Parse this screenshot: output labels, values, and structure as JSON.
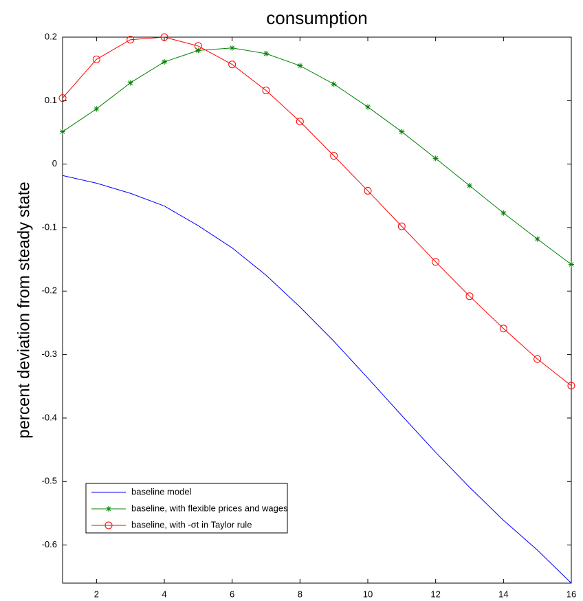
{
  "chart_data": {
    "type": "line",
    "title": "consumption",
    "y_label": "percent deviation from steady state",
    "x": [
      1,
      2,
      3,
      4,
      5,
      6,
      7,
      8,
      9,
      10,
      11,
      12,
      13,
      14,
      15,
      16
    ],
    "xlim": [
      1,
      16
    ],
    "xticks": [
      2,
      4,
      6,
      8,
      10,
      12,
      14,
      16
    ],
    "ylim": [
      -0.66,
      0.2
    ],
    "yticks": [
      0.2,
      0.1,
      0,
      -0.1,
      -0.2,
      -0.3,
      -0.4,
      -0.5,
      -0.6
    ],
    "legend": "lower left",
    "grid": false,
    "series": [
      {
        "name": "baseline model",
        "color": "#0000ff",
        "marker": "none",
        "values": [
          -0.018,
          -0.03,
          -0.046,
          -0.066,
          -0.097,
          -0.132,
          -0.175,
          -0.225,
          -0.279,
          -0.337,
          -0.396,
          -0.454,
          -0.509,
          -0.561,
          -0.608,
          -0.66
        ]
      },
      {
        "name": "baseline, with flexible prices and wages",
        "color": "#008000",
        "marker": "asterisk",
        "values": [
          0.051,
          0.087,
          0.128,
          0.161,
          0.179,
          0.183,
          0.174,
          0.155,
          0.126,
          0.09,
          0.051,
          0.009,
          -0.034,
          -0.077,
          -0.118,
          -0.158
        ]
      },
      {
        "name": "baseline, with -σt in Taylor rule",
        "color": "#ff0000",
        "marker": "circle",
        "values": [
          0.104,
          0.165,
          0.196,
          0.2,
          0.186,
          0.157,
          0.116,
          0.067,
          0.013,
          -0.042,
          -0.098,
          -0.154,
          -0.208,
          -0.259,
          -0.307,
          -0.349
        ]
      }
    ]
  }
}
